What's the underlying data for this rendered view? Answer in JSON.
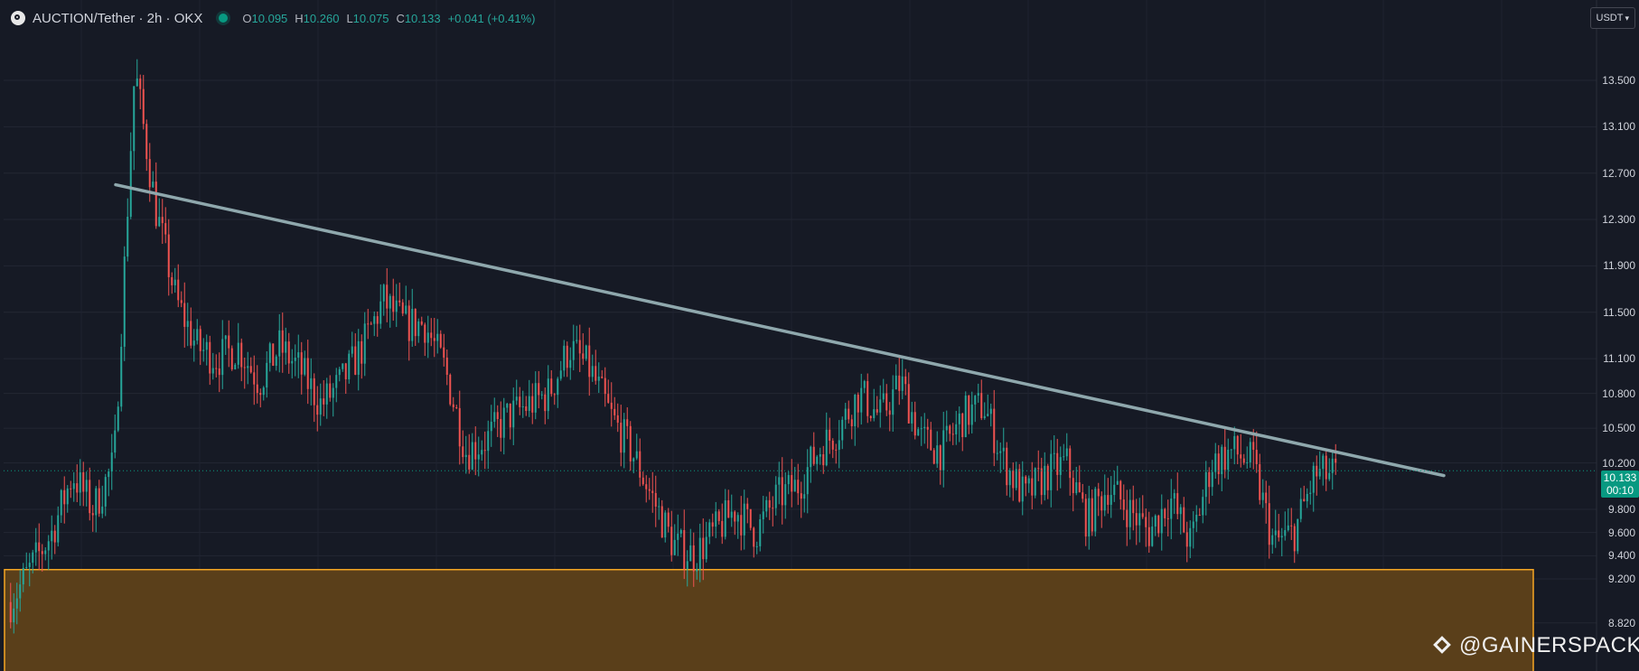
{
  "header": {
    "symbol_title": "AUCTION/Tether · 2h · OKX",
    "ohlc": [
      {
        "key": "O",
        "value": "10.095"
      },
      {
        "key": "H",
        "value": "10.260"
      },
      {
        "key": "L",
        "value": "10.075"
      },
      {
        "key": "C",
        "value": "10.133"
      },
      {
        "key": "",
        "value": "+0.041 (+0.41%)"
      }
    ]
  },
  "currency_button": {
    "label": "USDT",
    "icon": "chevron-down-icon"
  },
  "last_price": {
    "price": "10.133",
    "countdown": "00:10"
  },
  "watermark": {
    "text": "@GAINERSPACK",
    "icon": "diamond-logo-icon"
  },
  "colors": {
    "background": "#161a25",
    "up": "#26a69a",
    "down": "#ef5350",
    "trendline": "#8fa8ad",
    "support_zone_fill": "#5a3f1a",
    "support_zone_border": "#f5a623",
    "last_price_tag": "#089981"
  },
  "chart_data": {
    "type": "candlestick",
    "title": "AUCTION/Tether · 2h · OKX",
    "y_axis_labels": [
      "13.500",
      "13.100",
      "12.700",
      "12.300",
      "11.900",
      "11.500",
      "11.100",
      "10.800",
      "10.500",
      "10.200",
      "9.800",
      "9.600",
      "9.400",
      "9.200",
      "8.820"
    ],
    "y_axis_values": [
      13.5,
      13.1,
      12.7,
      12.3,
      11.9,
      11.5,
      11.1,
      10.8,
      10.5,
      10.2,
      9.8,
      9.6,
      9.4,
      9.2,
      8.82
    ],
    "ylim": [
      8.8,
      14.2
    ],
    "grid": true,
    "current_price": 10.133,
    "trendline": {
      "start_value": 12.6,
      "end_value": 10.13
    },
    "support_zone": {
      "low": 8.8,
      "high": 9.28
    },
    "price_path_anchors": [
      9.0,
      9.3,
      9.6,
      10.1,
      9.8,
      10.2,
      13.6,
      12.4,
      11.6,
      11.2,
      11.1,
      11.2,
      10.9,
      11.2,
      11.0,
      10.7,
      10.9,
      11.2,
      11.6,
      11.4,
      11.4,
      11.0,
      10.3,
      10.4,
      10.6,
      10.7,
      10.8,
      11.2,
      11.0,
      10.6,
      10.3,
      9.9,
      9.5,
      9.4,
      9.6,
      9.8,
      9.6,
      9.9,
      10.0,
      10.3,
      10.5,
      10.8,
      10.6,
      10.9,
      10.4,
      10.3,
      10.6,
      10.7,
      10.2,
      9.9,
      10.1,
      10.2,
      9.7,
      10.0,
      9.8,
      9.6,
      9.9,
      9.5,
      10.2,
      10.3,
      10.2,
      9.5,
      9.6,
      10.1,
      10.1
    ]
  }
}
